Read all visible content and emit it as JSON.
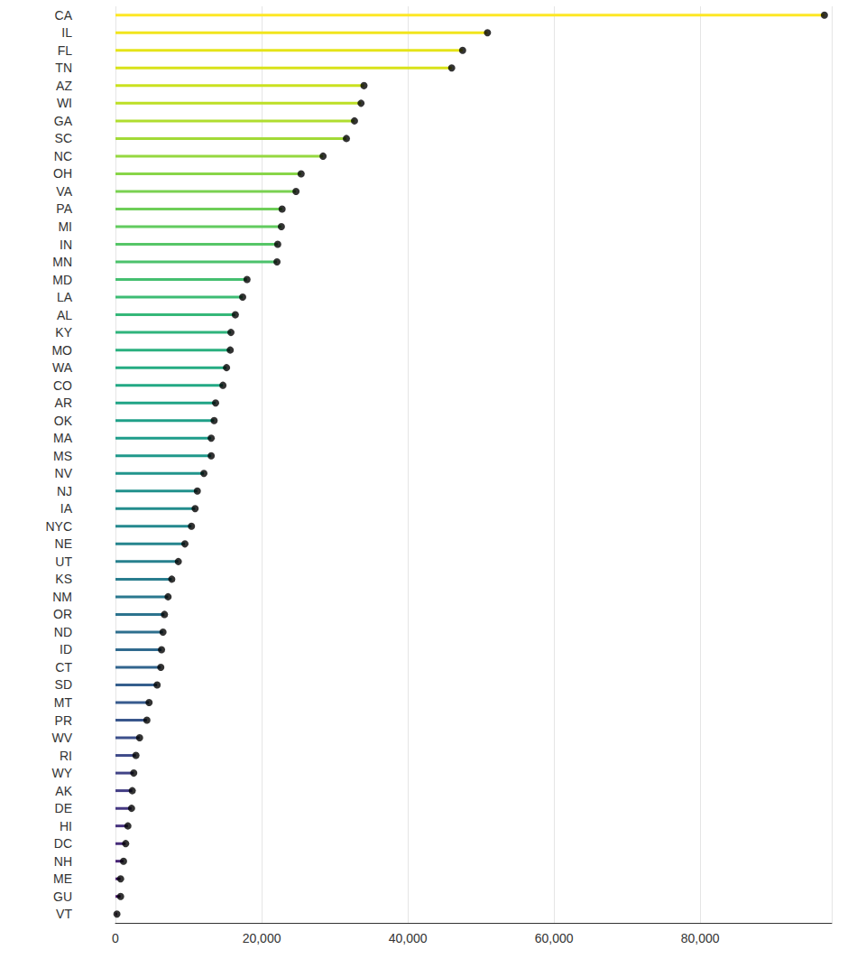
{
  "chart_data": {
    "type": "lollipop",
    "orientation": "horizontal",
    "grid": true,
    "marker": "circle",
    "categories": [
      "CA",
      "IL",
      "FL",
      "TN",
      "AZ",
      "WI",
      "GA",
      "SC",
      "NC",
      "OH",
      "VA",
      "PA",
      "MI",
      "IN",
      "MN",
      "MD",
      "LA",
      "AL",
      "KY",
      "MO",
      "WA",
      "CO",
      "AR",
      "OK",
      "MA",
      "MS",
      "NV",
      "NJ",
      "IA",
      "NYC",
      "NE",
      "UT",
      "KS",
      "NM",
      "OR",
      "ND",
      "ID",
      "CT",
      "SD",
      "MT",
      "PR",
      "WV",
      "RI",
      "WY",
      "AK",
      "DE",
      "HI",
      "DC",
      "NH",
      "ME",
      "GU",
      "VT"
    ],
    "values": [
      97000,
      50900,
      47500,
      46000,
      34000,
      33600,
      32700,
      31600,
      28400,
      25400,
      24700,
      22800,
      22700,
      22200,
      22100,
      18000,
      17400,
      16400,
      15800,
      15700,
      15200,
      14700,
      13700,
      13500,
      13100,
      13100,
      12100,
      11200,
      10900,
      10400,
      9500,
      8600,
      7700,
      7200,
      6700,
      6500,
      6300,
      6200,
      5700,
      4600,
      4300,
      3300,
      2800,
      2500,
      2300,
      2200,
      1700,
      1400,
      1100,
      700,
      700,
      200
    ],
    "colors": [
      "#fde725",
      "#f1e51d",
      "#e5e419",
      "#d8e219",
      "#cae11f",
      "#bddf26",
      "#b0dd2f",
      "#a2da37",
      "#95d840",
      "#88d548",
      "#7ad151",
      "#6ece58",
      "#62cb5f",
      "#56c667",
      "#4cc26c",
      "#44bf70",
      "#3dbc74",
      "#35b779",
      "#2fb47c",
      "#2ab07f",
      "#25ac82",
      "#22a884",
      "#20a486",
      "#1fa088",
      "#1f9d8a",
      "#20998b",
      "#21958c",
      "#21918c",
      "#238d8d",
      "#24898e",
      "#26858e",
      "#27818e",
      "#297d8e",
      "#2a788e",
      "#2c738e",
      "#2e6f8e",
      "#306a8e",
      "#32658e",
      "#355f8d",
      "#375b8d",
      "#39568c",
      "#3c508b",
      "#3e4a89",
      "#414487",
      "#433e85",
      "#453882",
      "#46327e",
      "#472c7a",
      "#482576",
      "#481f70",
      "#48186a",
      "#471164"
    ],
    "xlim": [
      0,
      98000
    ],
    "xticks": [
      0,
      {
        "value": 20000,
        "label": "20,000"
      },
      {
        "value": 40000,
        "label": "40,000"
      },
      {
        "value": 60000,
        "label": "60,000"
      },
      {
        "value": 80000,
        "label": "80,000"
      }
    ]
  }
}
